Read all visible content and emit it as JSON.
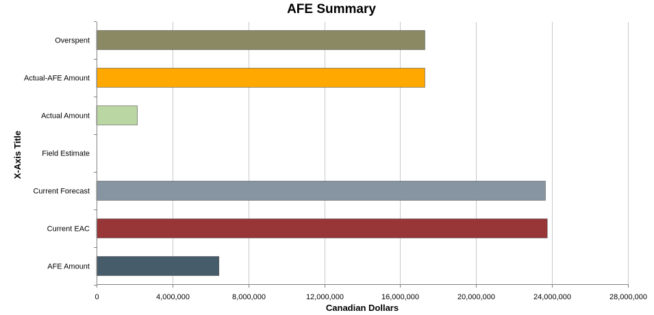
{
  "chart_data": {
    "type": "bar",
    "orientation": "horizontal",
    "title": "AFE Summary",
    "xlabel": "Canadian Dollars",
    "ylabel": "X-Axis Title",
    "categories": [
      "Overspent",
      "Actual-AFE Amount",
      "Actual Amount",
      "Field Estimate",
      "Current Forecast",
      "Current EAC",
      "AFE Amount"
    ],
    "values": [
      17300000,
      17300000,
      2150000,
      0,
      23650000,
      23750000,
      6450000
    ],
    "colors": [
      "#8a8964",
      "#ffa800",
      "#bad7a3",
      "#cccccc",
      "#8795a2",
      "#983536",
      "#475c6a"
    ],
    "xlim": [
      0,
      28000000
    ],
    "x_ticks": [
      0,
      4000000,
      8000000,
      12000000,
      16000000,
      20000000,
      24000000,
      28000000
    ],
    "x_tick_labels": [
      "0",
      "4,000,000",
      "8,000,000",
      "12,000,000",
      "16,000,000",
      "20,000,000",
      "24,000,000",
      "28,000,000"
    ],
    "grid": "vertical",
    "legend": "none"
  }
}
